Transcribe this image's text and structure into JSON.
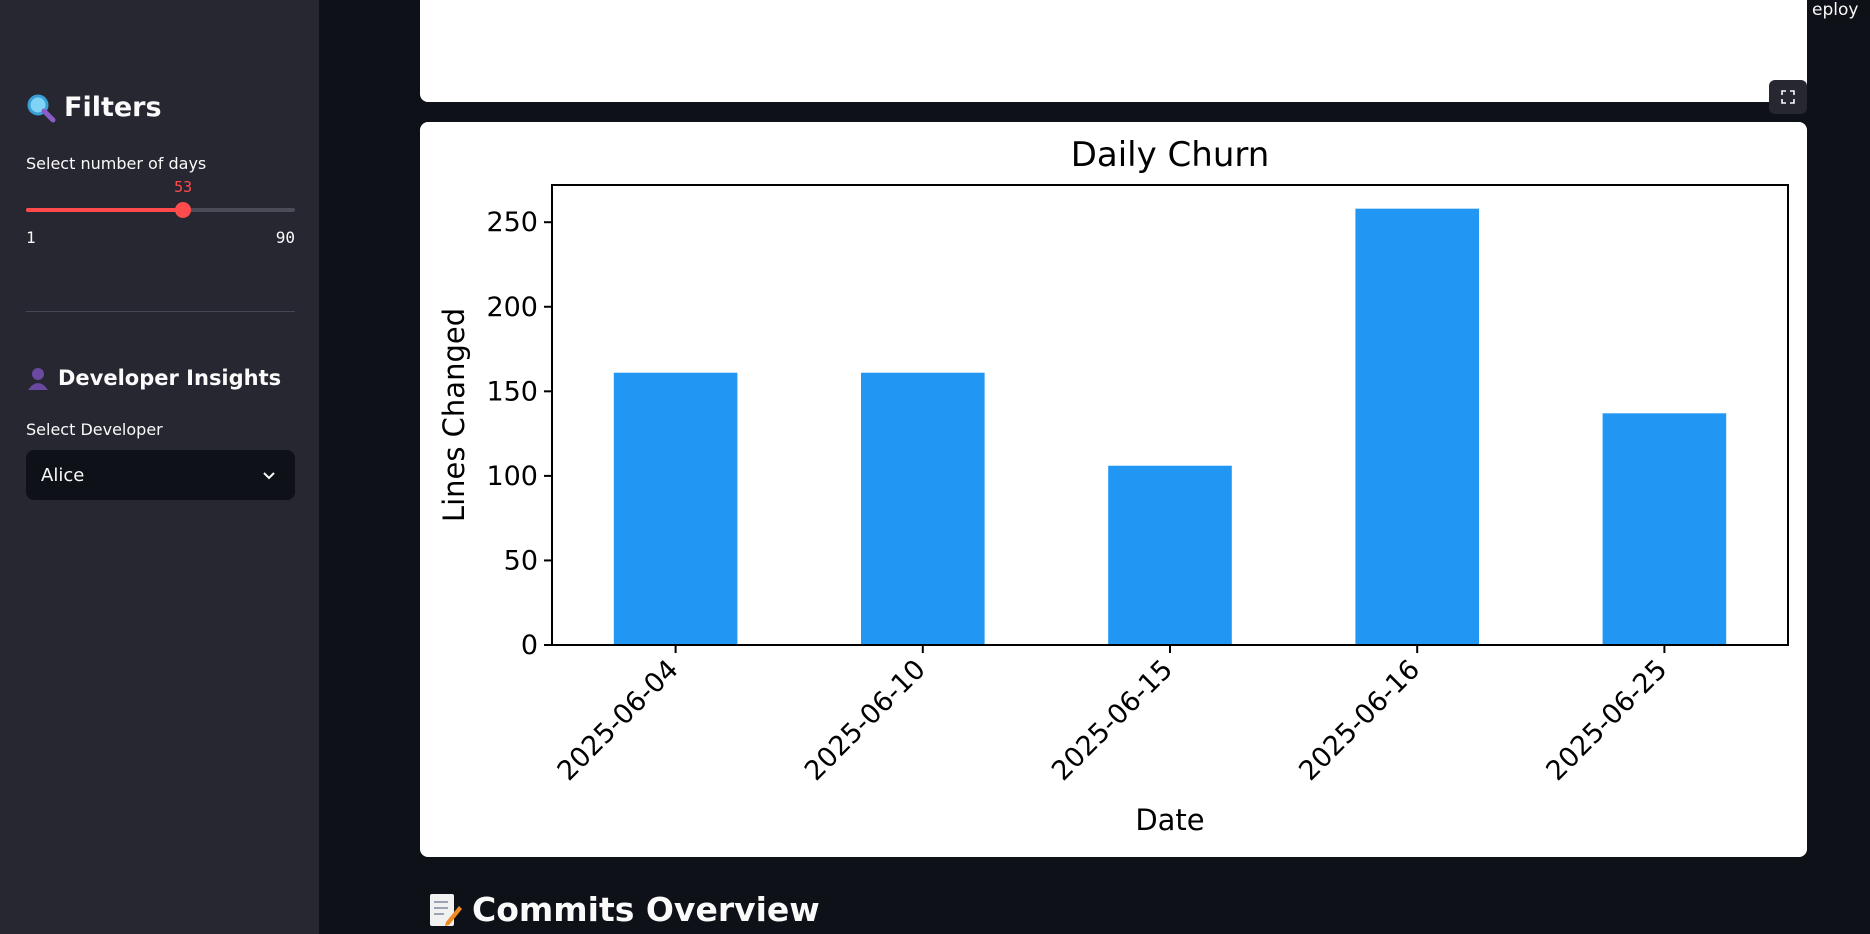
{
  "sidebar": {
    "filters_title": "Filters",
    "days_label": "Select number of days",
    "days_slider": {
      "value": "53",
      "min": "1",
      "max": "90"
    },
    "dev_title": "Developer Insights",
    "dev_label": "Select Developer",
    "dev_selected": "Alice"
  },
  "header": {
    "deploy_label": "eploy"
  },
  "section": {
    "title": "Commits Overview"
  },
  "colors": {
    "accent": "#ff4b4b",
    "bar": "#2196f3",
    "sidebar_bg": "#262730",
    "main_bg": "#0e1117"
  },
  "icons": [
    "magnifier-icon",
    "user-icon",
    "memo-icon",
    "chevron-down-icon",
    "expand-icon"
  ],
  "chart_data": {
    "type": "bar",
    "title": "Daily Churn",
    "xlabel": "Date",
    "ylabel": "Lines Changed",
    "categories": [
      "2025-06-04",
      "2025-06-10",
      "2025-06-15",
      "2025-06-16",
      "2025-06-25"
    ],
    "values": [
      161,
      161,
      106,
      258,
      137
    ],
    "ylim": [
      0,
      272
    ],
    "yticks": [
      0,
      50,
      100,
      150,
      200,
      250
    ],
    "grid": false,
    "legend": "none"
  }
}
